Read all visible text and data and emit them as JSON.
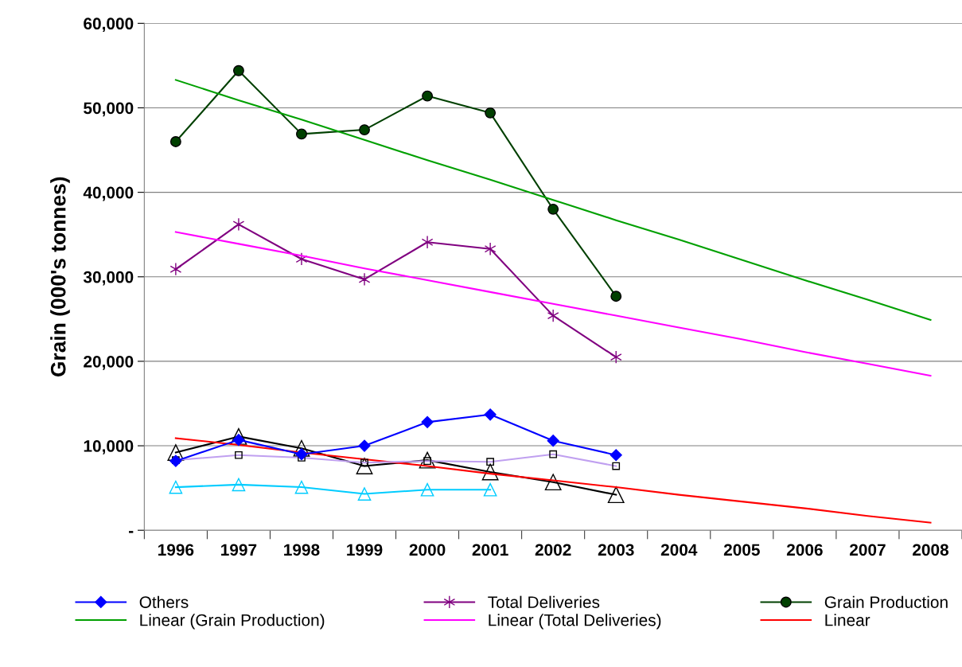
{
  "chart_data": {
    "type": "line",
    "ylabel": "Grain (000's tonnes)",
    "categories": [
      "1996",
      "1997",
      "1998",
      "1999",
      "2000",
      "2001",
      "2002",
      "2003",
      "2004",
      "2005",
      "2006",
      "2007",
      "2008"
    ],
    "ylim": [
      0,
      60000
    ],
    "yticks": [
      {
        "value": 0,
        "label": "-"
      },
      {
        "value": 10000,
        "label": "10,000"
      },
      {
        "value": 20000,
        "label": "20,000"
      },
      {
        "value": 30000,
        "label": "30,000"
      },
      {
        "value": 40000,
        "label": "40,000"
      },
      {
        "value": 50000,
        "label": "50,000"
      },
      {
        "value": 60000,
        "label": "60,000"
      }
    ],
    "grid": "y",
    "legend": "bottom",
    "series": [
      {
        "name": "Others",
        "color": "#0000ff",
        "marker": "diamond",
        "values": [
          8200,
          10700,
          9000,
          10000,
          12800,
          13700,
          10600,
          8900,
          null,
          null,
          null,
          null,
          null
        ]
      },
      {
        "color": "#c0a0f0",
        "marker": "square",
        "values": [
          8300,
          8900,
          8600,
          8000,
          8200,
          8100,
          9000,
          7600,
          null,
          null,
          null,
          null,
          null
        ]
      },
      {
        "color": "#00ccff",
        "marker": "triangle",
        "values": [
          5100,
          5400,
          5100,
          4300,
          4800,
          4800,
          null,
          null,
          null,
          null,
          null,
          null,
          null
        ]
      },
      {
        "color": "#000000",
        "marker": "triangle",
        "values": [
          9200,
          11100,
          9700,
          7600,
          8300,
          6900,
          5700,
          4200,
          null,
          null,
          null,
          null,
          null
        ]
      },
      {
        "name": "Total Deliveries",
        "color": "#800080",
        "marker": "cross",
        "values": [
          30900,
          36200,
          32100,
          29700,
          34100,
          33300,
          25400,
          20500,
          null,
          null,
          null,
          null,
          null
        ]
      },
      {
        "name": "Grain Production",
        "color": "#004000",
        "marker": "circle",
        "values": [
          46000,
          54400,
          46900,
          47400,
          51400,
          49400,
          38000,
          27700,
          null,
          null,
          null,
          null,
          null
        ]
      },
      {
        "name": "Linear (Grain Production)",
        "color": "#00a000",
        "marker": "none",
        "values": [
          53300,
          50900,
          48600,
          46200,
          43800,
          41500,
          39100,
          36700,
          34400,
          32000,
          29600,
          27300,
          24900
        ]
      },
      {
        "name": "Linear (Total Deliveries)",
        "color": "#ff00ff",
        "marker": "none",
        "values": [
          35300,
          33900,
          32500,
          31000,
          29600,
          28200,
          26800,
          25400,
          24000,
          22600,
          21100,
          19700,
          18300
        ]
      },
      {
        "name": "Linear",
        "color": "#ff0000",
        "marker": "none",
        "values": [
          10900,
          10100,
          9200,
          8400,
          7600,
          6700,
          5900,
          5100,
          4200,
          3400,
          2600,
          1700,
          900
        ]
      }
    ]
  }
}
